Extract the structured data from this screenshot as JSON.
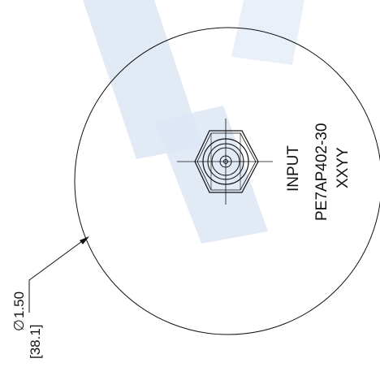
{
  "labels": {
    "port_name": "INPUT",
    "part_number": "PE7AP402-30",
    "date_code": "XXYY"
  },
  "dimension": {
    "diameter_symbol": "∅",
    "inch_value": "1.50",
    "mm_value": "[38.1]"
  },
  "colors": {
    "watermark": "#dde6f5",
    "line": "#111111",
    "background": "#ffffff"
  }
}
